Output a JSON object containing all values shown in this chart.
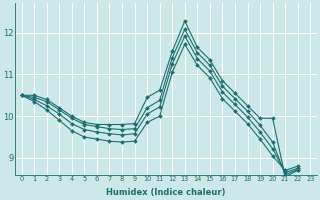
{
  "xlabel": "Humidex (Indice chaleur)",
  "bg_color": "#cce8e8",
  "line_color": "#1a7070",
  "grid_color": "#ffffff",
  "x_ticks": [
    0,
    1,
    2,
    3,
    4,
    5,
    6,
    7,
    8,
    9,
    10,
    11,
    12,
    13,
    14,
    15,
    16,
    17,
    18,
    19,
    20,
    21,
    22,
    23
  ],
  "y_ticks": [
    9,
    10,
    11,
    12
  ],
  "ylim": [
    8.6,
    12.7
  ],
  "xlim": [
    -0.5,
    23.5
  ],
  "lines": [
    [
      10.5,
      10.5,
      10.4,
      10.2,
      10.0,
      9.85,
      9.8,
      9.8,
      9.8,
      9.82,
      10.45,
      10.62,
      11.55,
      12.28,
      11.65,
      11.35,
      10.85,
      10.55,
      10.25,
      9.95,
      9.95,
      8.55,
      8.7
    ],
    [
      10.5,
      10.45,
      10.35,
      10.15,
      9.95,
      9.8,
      9.75,
      9.7,
      9.68,
      9.7,
      10.2,
      10.38,
      11.4,
      12.08,
      11.52,
      11.22,
      10.72,
      10.42,
      10.12,
      9.78,
      9.38,
      8.6,
      8.72
    ],
    [
      10.5,
      10.4,
      10.25,
      10.05,
      9.82,
      9.68,
      9.62,
      9.58,
      9.55,
      9.58,
      10.05,
      10.22,
      11.25,
      11.92,
      11.38,
      11.08,
      10.58,
      10.28,
      9.98,
      9.62,
      9.22,
      8.65,
      8.75
    ],
    [
      10.5,
      10.35,
      10.15,
      9.9,
      9.65,
      9.5,
      9.45,
      9.4,
      9.38,
      9.4,
      9.85,
      10.0,
      11.05,
      11.72,
      11.22,
      10.92,
      10.42,
      10.12,
      9.82,
      9.45,
      9.05,
      8.7,
      8.8
    ]
  ]
}
